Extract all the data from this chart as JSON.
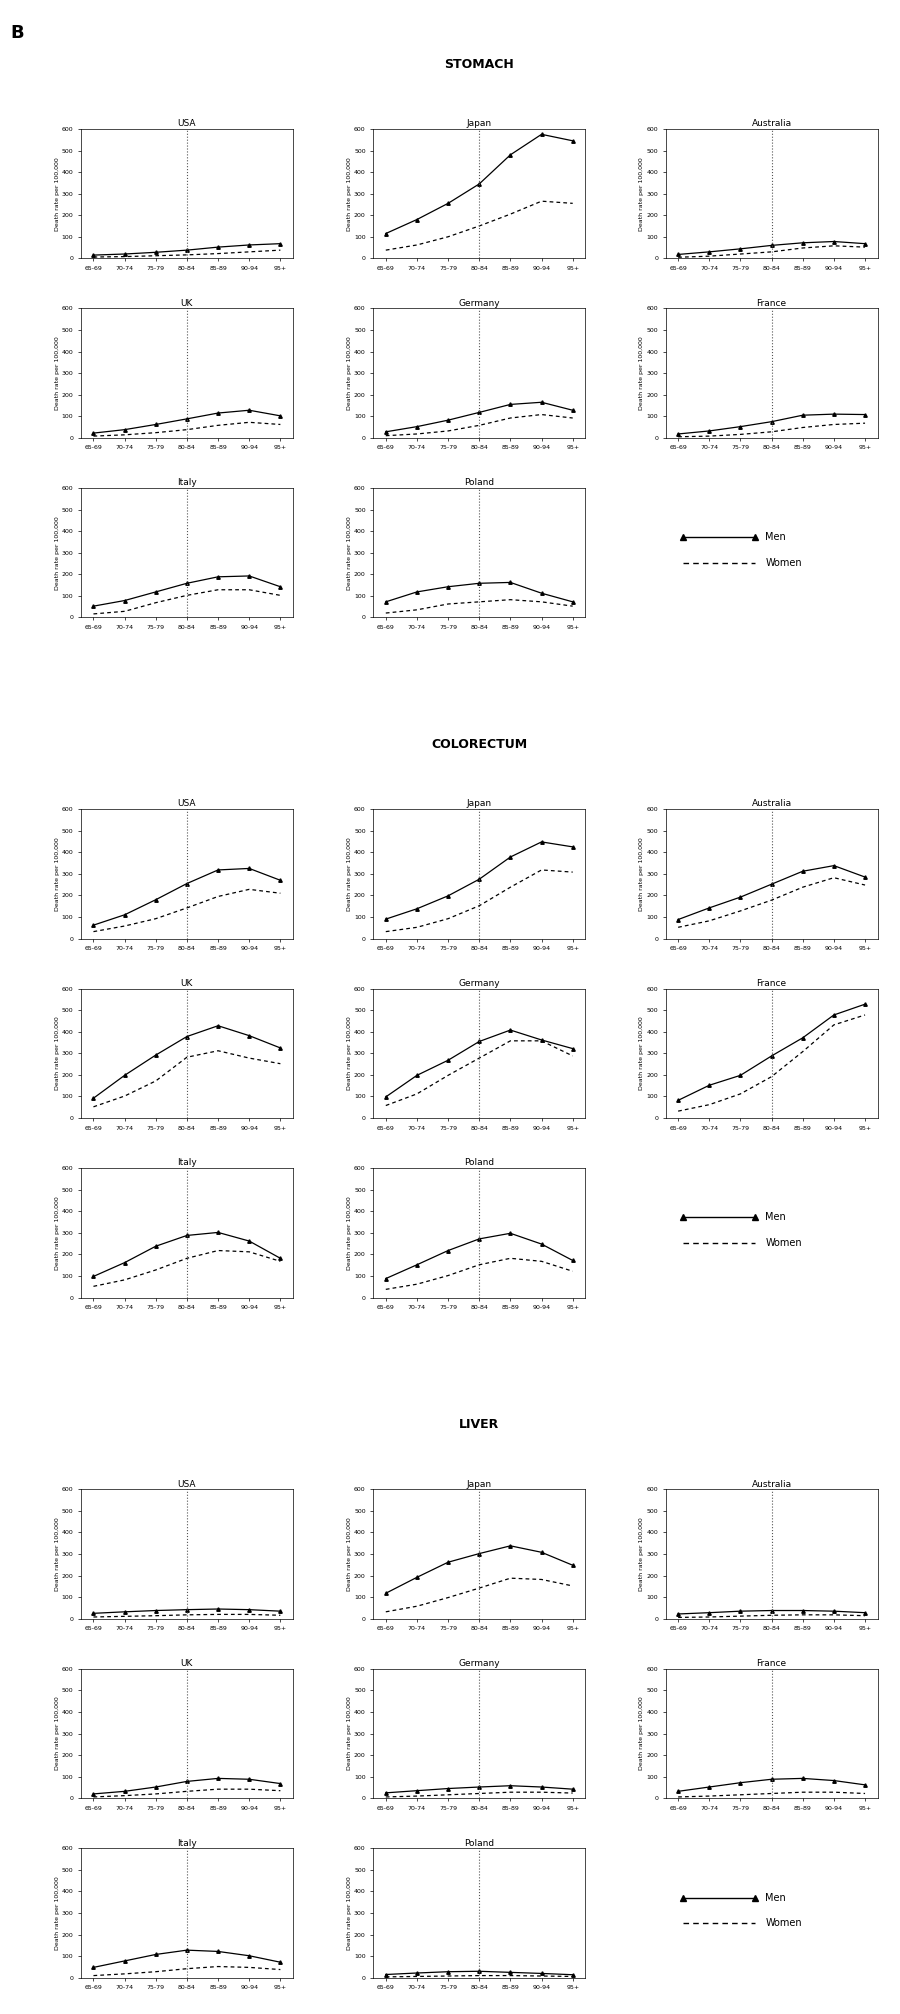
{
  "age_groups": [
    "65-69",
    "70-74",
    "75-79",
    "80-84",
    "85-89",
    "90-94",
    "95+"
  ],
  "vline_x": 3,
  "sections": {
    "STOMACH": {
      "ylim": [
        0,
        600
      ],
      "yticks": [
        0,
        100,
        200,
        300,
        400,
        500,
        600
      ],
      "data": {
        "USA": {
          "men": [
            15,
            20,
            28,
            38,
            52,
            62,
            68
          ],
          "women": [
            6,
            8,
            12,
            16,
            22,
            30,
            38
          ]
        },
        "Japan": {
          "men": [
            115,
            180,
            255,
            345,
            480,
            575,
            545
          ],
          "women": [
            38,
            62,
            100,
            150,
            205,
            265,
            255
          ]
        },
        "Australia": {
          "men": [
            18,
            30,
            44,
            60,
            72,
            78,
            68
          ],
          "women": [
            5,
            10,
            20,
            30,
            48,
            58,
            52
          ]
        },
        "UK": {
          "men": [
            22,
            38,
            62,
            88,
            115,
            128,
            102
          ],
          "women": [
            8,
            14,
            24,
            38,
            58,
            72,
            62
          ]
        },
        "Germany": {
          "men": [
            28,
            52,
            82,
            118,
            155,
            165,
            128
          ],
          "women": [
            10,
            18,
            32,
            58,
            92,
            108,
            92
          ]
        },
        "France": {
          "men": [
            18,
            32,
            52,
            75,
            105,
            110,
            108
          ],
          "women": [
            5,
            8,
            16,
            28,
            48,
            62,
            68
          ]
        },
        "Italy": {
          "men": [
            52,
            78,
            118,
            158,
            188,
            192,
            142
          ],
          "women": [
            16,
            28,
            68,
            102,
            128,
            128,
            102
          ]
        },
        "Poland": {
          "men": [
            72,
            118,
            142,
            158,
            162,
            112,
            72
          ],
          "women": [
            20,
            35,
            62,
            72,
            82,
            72,
            52
          ]
        }
      }
    },
    "COLORECTUM": {
      "ylim": [
        0,
        600
      ],
      "yticks": [
        0,
        100,
        200,
        300,
        400,
        500,
        600
      ],
      "data": {
        "USA": {
          "men": [
            62,
            110,
            180,
            255,
            318,
            325,
            270
          ],
          "women": [
            32,
            58,
            92,
            142,
            195,
            228,
            210
          ]
        },
        "Japan": {
          "men": [
            90,
            138,
            198,
            275,
            378,
            448,
            425
          ],
          "women": [
            32,
            52,
            92,
            152,
            238,
            318,
            308
          ]
        },
        "Australia": {
          "men": [
            88,
            142,
            192,
            252,
            312,
            338,
            285
          ],
          "women": [
            52,
            82,
            128,
            178,
            238,
            282,
            248
          ]
        },
        "UK": {
          "men": [
            92,
            198,
            292,
            378,
            428,
            382,
            325
          ],
          "women": [
            52,
            102,
            172,
            282,
            312,
            278,
            252
          ]
        },
        "Germany": {
          "men": [
            98,
            198,
            268,
            355,
            408,
            362,
            322
          ],
          "women": [
            58,
            112,
            198,
            278,
            358,
            358,
            288
          ]
        },
        "France": {
          "men": [
            82,
            152,
            198,
            288,
            372,
            478,
            528
          ],
          "women": [
            32,
            62,
            112,
            192,
            308,
            432,
            478
          ]
        },
        "Italy": {
          "men": [
            98,
            162,
            238,
            288,
            302,
            262,
            182
          ],
          "women": [
            52,
            82,
            128,
            182,
            218,
            212,
            168
          ]
        },
        "Poland": {
          "men": [
            88,
            152,
            218,
            272,
            298,
            248,
            172
          ],
          "women": [
            38,
            62,
            102,
            152,
            182,
            168,
            122
          ]
        }
      }
    },
    "LIVER": {
      "ylim": [
        0,
        600
      ],
      "yticks": [
        0,
        100,
        200,
        300,
        400,
        500,
        600
      ],
      "data": {
        "USA": {
          "men": [
            25,
            32,
            38,
            42,
            45,
            42,
            35
          ],
          "women": [
            8,
            11,
            14,
            18,
            20,
            20,
            16
          ]
        },
        "Japan": {
          "men": [
            118,
            192,
            262,
            302,
            338,
            308,
            248
          ],
          "women": [
            32,
            58,
            98,
            142,
            188,
            182,
            152
          ]
        },
        "Australia": {
          "men": [
            22,
            28,
            35,
            38,
            38,
            35,
            28
          ],
          "women": [
            6,
            8,
            12,
            16,
            18,
            18,
            14
          ]
        },
        "UK": {
          "men": [
            20,
            32,
            52,
            78,
            92,
            88,
            68
          ],
          "women": [
            6,
            12,
            20,
            32,
            42,
            42,
            35
          ]
        },
        "Germany": {
          "men": [
            25,
            35,
            45,
            52,
            58,
            52,
            42
          ],
          "women": [
            6,
            10,
            16,
            22,
            28,
            28,
            24
          ]
        },
        "France": {
          "men": [
            32,
            52,
            72,
            88,
            92,
            82,
            62
          ],
          "women": [
            6,
            10,
            16,
            22,
            28,
            28,
            22
          ]
        },
        "Italy": {
          "men": [
            48,
            78,
            108,
            128,
            122,
            102,
            72
          ],
          "women": [
            10,
            18,
            28,
            42,
            52,
            48,
            38
          ]
        },
        "Poland": {
          "men": [
            15,
            22,
            28,
            30,
            25,
            20,
            14
          ],
          "women": [
            4,
            6,
            8,
            10,
            10,
            8,
            6
          ]
        }
      }
    }
  },
  "layout": {
    "section_order": [
      "STOMACH",
      "COLORECTUM",
      "LIVER"
    ],
    "countries_row1": [
      "USA",
      "Japan",
      "Australia"
    ],
    "countries_row2": [
      "UK",
      "Germany",
      "France"
    ],
    "countries_row3": [
      "Italy",
      "Poland",
      null
    ]
  }
}
